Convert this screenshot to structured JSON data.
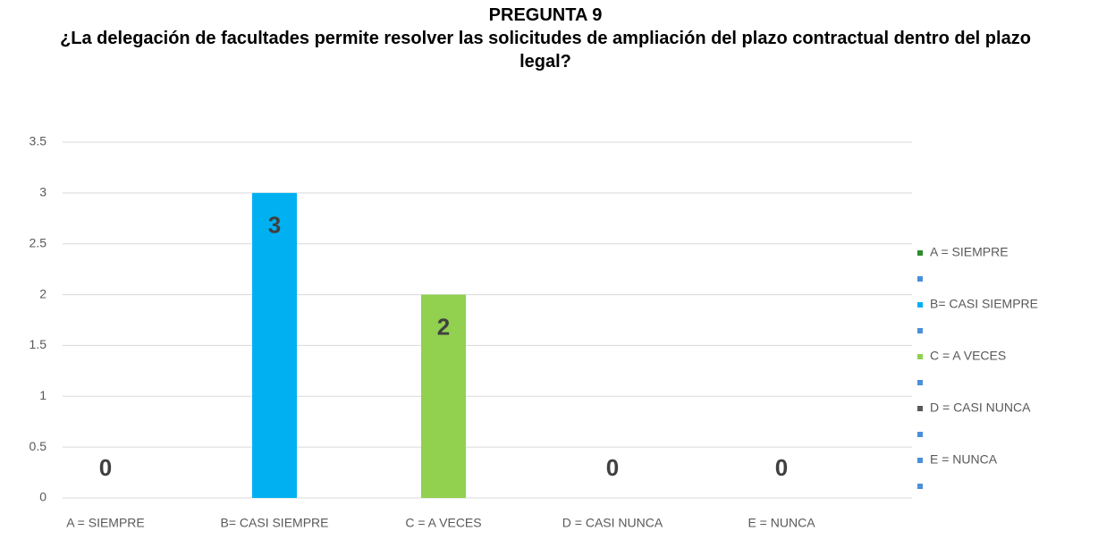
{
  "chart_data": {
    "type": "bar",
    "title": "PREGUNTA 9",
    "subtitle": "¿La delegación de facultades permite resolver las solicitudes de ampliación del plazo contractual dentro del plazo legal?",
    "categories": [
      "A = SIEMPRE",
      "B= CASI SIEMPRE",
      "C = A VECES",
      "D = CASI NUNCA",
      "E = NUNCA"
    ],
    "values": [
      0,
      3,
      2,
      0,
      0
    ],
    "colors": [
      "#2e8b2e",
      "#00b0f0",
      "#92d050",
      "#595959",
      "#4a90d9"
    ],
    "ylim": [
      0,
      3.5
    ],
    "yticks": [
      0,
      0.5,
      1,
      1.5,
      2,
      2.5,
      3,
      3.5
    ],
    "grid": true,
    "legend": "right"
  }
}
